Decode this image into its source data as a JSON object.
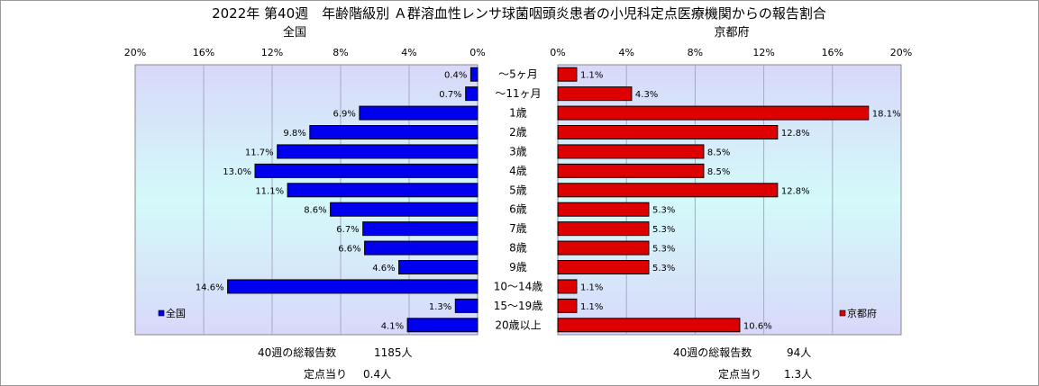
{
  "chart_data": {
    "type": "bar",
    "orientation": "horizontal-butterfly",
    "title": "2022年 第40週　年齢階級別 Ａ群溶血性レンサ球菌咽頭炎患者の小児科定点医療機関からの報告割合",
    "categories": [
      "～5ヶ月",
      "～11ヶ月",
      "1歳",
      "2歳",
      "3歳",
      "4歳",
      "5歳",
      "6歳",
      "7歳",
      "8歳",
      "9歳",
      "10～14歳",
      "15～19歳",
      "20歳以上"
    ],
    "panels": [
      {
        "name": "全国",
        "subtitle": "全国",
        "direction": "left",
        "color": "#0000ee",
        "xlim": [
          0,
          20
        ],
        "ticks": [
          "20%",
          "16%",
          "12%",
          "8%",
          "4%",
          "0%"
        ],
        "values": [
          0.4,
          0.7,
          6.9,
          9.8,
          11.7,
          13.0,
          11.1,
          8.6,
          6.7,
          6.6,
          4.6,
          14.6,
          1.3,
          4.1
        ],
        "value_labels": [
          "0.4%",
          "0.7%",
          "6.9%",
          "9.8%",
          "11.7%",
          "13.0%",
          "11.1%",
          "8.6%",
          "6.7%",
          "6.6%",
          "4.6%",
          "14.6%",
          "1.3%",
          "4.1%"
        ],
        "legend": "全国",
        "legend_placement": "bottom-left",
        "total_label": "40週の総報告数",
        "total_value": "1185人",
        "per_point_label": "定点当り",
        "per_point_value": "0.4人"
      },
      {
        "name": "京都府",
        "subtitle": "京都府",
        "direction": "right",
        "color": "#dd0000",
        "xlim": [
          0,
          20
        ],
        "ticks": [
          "0%",
          "4%",
          "8%",
          "12%",
          "16%",
          "20%"
        ],
        "values": [
          1.1,
          4.3,
          18.1,
          12.8,
          8.5,
          8.5,
          12.8,
          5.3,
          5.3,
          5.3,
          5.3,
          1.1,
          1.1,
          10.6
        ],
        "value_labels": [
          "1.1%",
          "4.3%",
          "18.1%",
          "12.8%",
          "8.5%",
          "8.5%",
          "12.8%",
          "5.3%",
          "5.3%",
          "5.3%",
          "5.3%",
          "1.1%",
          "1.1%",
          "10.6%"
        ],
        "legend": "京都府",
        "legend_placement": "bottom-right",
        "total_label": "40週の総報告数",
        "total_value": "94人",
        "per_point_label": "定点当り",
        "per_point_value": "1.3人"
      }
    ],
    "grid": true
  }
}
